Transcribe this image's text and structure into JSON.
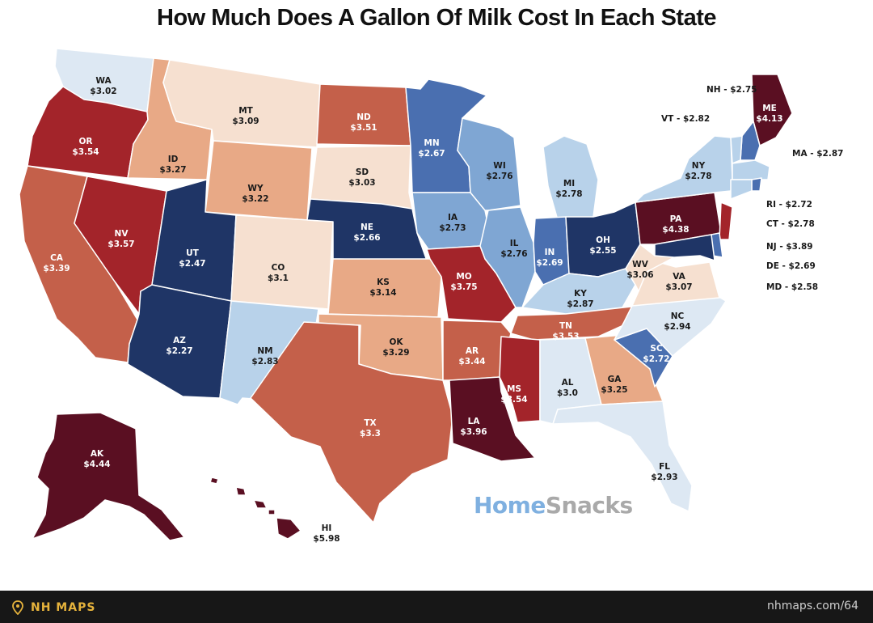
{
  "title": "How Much Does A Gallon Of Milk Cost In Each State",
  "watermark": {
    "part1": "Home",
    "part2": "Snacks"
  },
  "footer": {
    "brand": "NH MAPS",
    "url": "nhmaps.com/64"
  },
  "legend_scale_colors": {
    "darkblue": "#1f3566",
    "blue": "#4a6fb0",
    "midblue": "#7fa6d3",
    "lightblue": "#b8d2ea",
    "paleblue": "#dde8f3",
    "cream": "#f6e0d0",
    "peach": "#e8a986",
    "rust": "#c4604a",
    "red": "#a3242a",
    "maroon": "#5a0f22"
  },
  "states": [
    {
      "abbr": "WA",
      "price": "$3.02",
      "color": "#dde8f3"
    },
    {
      "abbr": "OR",
      "price": "$3.54",
      "color": "#a3242a"
    },
    {
      "abbr": "CA",
      "price": "$3.39",
      "color": "#c4604a"
    },
    {
      "abbr": "NV",
      "price": "$3.57",
      "color": "#a3242a"
    },
    {
      "abbr": "ID",
      "price": "$3.27",
      "color": "#e8a986"
    },
    {
      "abbr": "MT",
      "price": "$3.09",
      "color": "#f6e0d0"
    },
    {
      "abbr": "WY",
      "price": "$3.22",
      "color": "#e8a986"
    },
    {
      "abbr": "UT",
      "price": "$2.47",
      "color": "#1f3566"
    },
    {
      "abbr": "AZ",
      "price": "$2.27",
      "color": "#1f3566"
    },
    {
      "abbr": "CO",
      "price": "$3.1",
      "color": "#f6e0d0"
    },
    {
      "abbr": "NM",
      "price": "$2.83",
      "color": "#b8d2ea"
    },
    {
      "abbr": "ND",
      "price": "$3.51",
      "color": "#c4604a"
    },
    {
      "abbr": "SD",
      "price": "$3.03",
      "color": "#f6e0d0"
    },
    {
      "abbr": "NE",
      "price": "$2.66",
      "color": "#1f3566"
    },
    {
      "abbr": "KS",
      "price": "$3.14",
      "color": "#e8a986"
    },
    {
      "abbr": "OK",
      "price": "$3.29",
      "color": "#e8a986"
    },
    {
      "abbr": "TX",
      "price": "$3.3",
      "color": "#c4604a"
    },
    {
      "abbr": "MN",
      "price": "$2.67",
      "color": "#4a6fb0"
    },
    {
      "abbr": "IA",
      "price": "$2.73",
      "color": "#7fa6d3"
    },
    {
      "abbr": "MO",
      "price": "$3.75",
      "color": "#a3242a"
    },
    {
      "abbr": "AR",
      "price": "$3.44",
      "color": "#c4604a"
    },
    {
      "abbr": "LA",
      "price": "$3.96",
      "color": "#5a0f22"
    },
    {
      "abbr": "WI",
      "price": "$2.76",
      "color": "#7fa6d3"
    },
    {
      "abbr": "IL",
      "price": "$2.76",
      "color": "#7fa6d3"
    },
    {
      "abbr": "MI",
      "price": "$2.78",
      "color": "#b8d2ea"
    },
    {
      "abbr": "IN",
      "price": "$2.69",
      "color": "#4a6fb0"
    },
    {
      "abbr": "OH",
      "price": "$2.55",
      "color": "#1f3566"
    },
    {
      "abbr": "KY",
      "price": "$2.87",
      "color": "#b8d2ea"
    },
    {
      "abbr": "TN",
      "price": "$3.53",
      "color": "#c4604a"
    },
    {
      "abbr": "MS",
      "price": "$3.54",
      "color": "#a3242a"
    },
    {
      "abbr": "AL",
      "price": "$3.0",
      "color": "#dde8f3"
    },
    {
      "abbr": "GA",
      "price": "$3.25",
      "color": "#e8a986"
    },
    {
      "abbr": "FL",
      "price": "$2.93",
      "color": "#dde8f3"
    },
    {
      "abbr": "SC",
      "price": "$2.72",
      "color": "#4a6fb0"
    },
    {
      "abbr": "NC",
      "price": "$2.94",
      "color": "#dde8f3"
    },
    {
      "abbr": "VA",
      "price": "$3.07",
      "color": "#f6e0d0"
    },
    {
      "abbr": "WV",
      "price": "$3.06",
      "color": "#f6e0d0"
    },
    {
      "abbr": "PA",
      "price": "$4.38",
      "color": "#5a0f22"
    },
    {
      "abbr": "NY",
      "price": "$2.78",
      "color": "#b8d2ea"
    },
    {
      "abbr": "ME",
      "price": "$4.13",
      "color": "#5a0f22"
    },
    {
      "abbr": "AK",
      "price": "$4.44",
      "color": "#5a0f22"
    },
    {
      "abbr": "HI",
      "price": "$5.98",
      "color": "#5a0f22"
    }
  ],
  "small_states": [
    {
      "abbr": "NH",
      "price": "$2.75",
      "label": "NH - $2.75",
      "color": "#4a6fb0"
    },
    {
      "abbr": "VT",
      "price": "$2.82",
      "label": "VT - $2.82",
      "color": "#b8d2ea"
    },
    {
      "abbr": "MA",
      "price": "$2.87",
      "label": "MA - $2.87",
      "color": "#b8d2ea"
    },
    {
      "abbr": "RI",
      "price": "$2.72",
      "label": "RI - $2.72",
      "color": "#4a6fb0"
    },
    {
      "abbr": "CT",
      "price": "$2.78",
      "label": "CT - $2.78",
      "color": "#b8d2ea"
    },
    {
      "abbr": "NJ",
      "price": "$3.89",
      "label": "NJ - $3.89",
      "color": "#a3242a"
    },
    {
      "abbr": "DE",
      "price": "$2.69",
      "label": "DE - $2.69",
      "color": "#4a6fb0"
    },
    {
      "abbr": "MD",
      "price": "$2.58",
      "label": "MD - $2.58",
      "color": "#1f3566"
    }
  ]
}
